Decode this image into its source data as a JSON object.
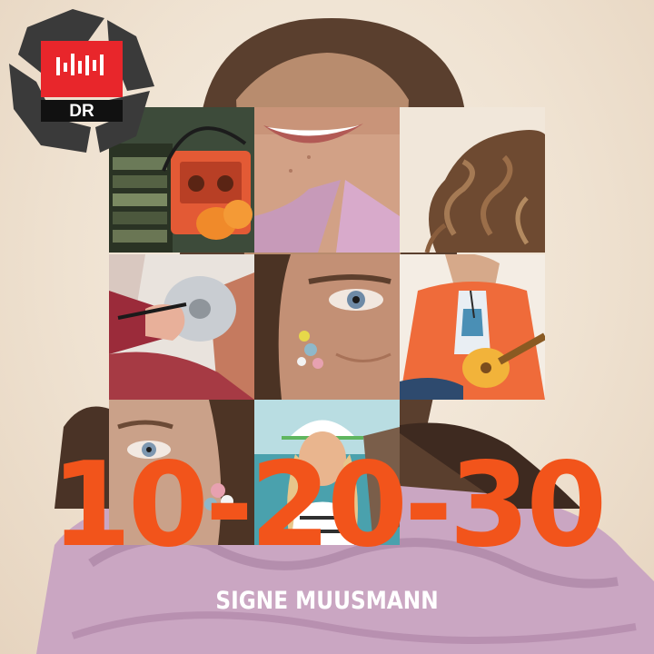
{
  "cover": {
    "title": "10-20-30",
    "artist": "SIGNE MUUSMANN",
    "logo_text": "DR",
    "title_color": "#f2541b",
    "artist_color": "#ffffff",
    "logo_red": "#e8262b"
  },
  "icons": [
    "recycle-icon",
    "dr-logo",
    "sound-bars-icon"
  ],
  "photo_tiles": [
    "cassette-player-with-headphones",
    "smiling-mouth",
    "curly-hair",
    "hand-signing-cd",
    "eye-closeup",
    "teen-with-ukulele",
    "eye-with-earring",
    "girl-with-visor-on-boat"
  ]
}
